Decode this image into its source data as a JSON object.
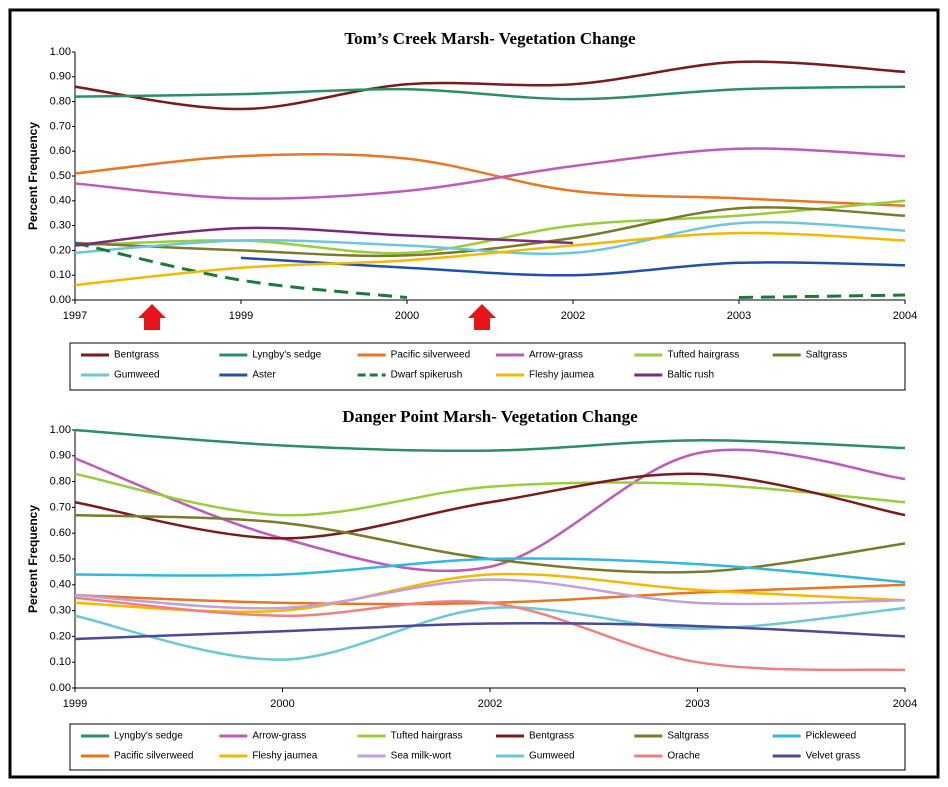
{
  "chart_data": [
    {
      "type": "line",
      "title": "Tom’s Creek Marsh- Vegetation Change",
      "y_label": "Percent Frequency",
      "categories": [
        "1997",
        "1999",
        "2000",
        "2002",
        "2003",
        "2004"
      ],
      "ylim": [
        0,
        1
      ],
      "yticks": [
        {
          "value": 0,
          "label": "0.00"
        },
        {
          "value": 0.1,
          "label": "0.10"
        },
        {
          "value": 0.2,
          "label": "0.20"
        },
        {
          "value": 0.3,
          "label": "0.30"
        },
        {
          "value": 0.4,
          "label": "0.40"
        },
        {
          "value": 0.5,
          "label": "0.50"
        },
        {
          "value": 0.6,
          "label": "0.60"
        },
        {
          "value": 0.7,
          "label": "0.70"
        },
        {
          "value": 0.8,
          "label": "0.80"
        },
        {
          "value": 0.9,
          "label": "0.90"
        },
        {
          "value": 1,
          "label": "1.00"
        }
      ],
      "series": [
        {
          "name": "Bentgrass",
          "color": "#7b1a1a",
          "values": [
            0.86,
            0.77,
            0.87,
            0.87,
            0.96,
            0.92
          ]
        },
        {
          "name": "Lyngby's sedge",
          "color": "#2a9060",
          "values": [
            0.82,
            0.83,
            0.85,
            0.81,
            0.85,
            0.86
          ]
        },
        {
          "name": "Pacific silverweed",
          "color": "#e87722",
          "values": [
            0.51,
            0.58,
            0.57,
            0.44,
            0.41,
            0.38
          ]
        },
        {
          "name": "Arrow-grass",
          "color": "#c05ab8",
          "values": [
            0.47,
            0.41,
            0.44,
            0.54,
            0.61,
            0.58
          ]
        },
        {
          "name": "Tufted hairgrass",
          "color": "#9acd3c",
          "values": [
            0.22,
            0.24,
            0.19,
            0.3,
            0.34,
            0.4
          ]
        },
        {
          "name": "Saltgrass",
          "color": "#7a7a2a",
          "values": [
            0.23,
            0.2,
            0.18,
            0.25,
            0.37,
            0.34
          ]
        },
        {
          "name": "Gumweed",
          "color": "#6cc8d8",
          "values": [
            0.19,
            0.24,
            0.22,
            0.19,
            0.31,
            0.28
          ]
        },
        {
          "name": "Aster",
          "color": "#2050a8",
          "values": [
            null,
            0.17,
            0.13,
            0.1,
            0.15,
            0.14
          ]
        },
        {
          "name": "Dwarf spikerush",
          "color": "#1a7a3a",
          "dashed": true,
          "values": [
            0.23,
            0.08,
            0.01,
            null,
            0.01,
            0.02
          ]
        },
        {
          "name": "Fleshy jaumea",
          "color": "#f5b800",
          "values": [
            0.06,
            0.13,
            0.16,
            0.22,
            0.27,
            0.24
          ]
        },
        {
          "name": "Baltic rush",
          "color": "#7a2a7a",
          "values": [
            0.22,
            0.29,
            0.26,
            0.23,
            null,
            null
          ]
        }
      ]
    },
    {
      "type": "line",
      "title": "Danger Point Marsh- Vegetation Change",
      "y_label": "Percent Frequency",
      "categories": [
        "1999",
        "2000",
        "2002",
        "2003",
        "2004"
      ],
      "ylim": [
        0,
        1
      ],
      "yticks": [
        {
          "value": 0,
          "label": "0.00"
        },
        {
          "value": 0.1,
          "label": "0.10"
        },
        {
          "value": 0.2,
          "label": "0.20"
        },
        {
          "value": 0.3,
          "label": "0.30"
        },
        {
          "value": 0.4,
          "label": "0.40"
        },
        {
          "value": 0.5,
          "label": "0.50"
        },
        {
          "value": 0.6,
          "label": "0.60"
        },
        {
          "value": 0.7,
          "label": "0.70"
        },
        {
          "value": 0.8,
          "label": "0.80"
        },
        {
          "value": 0.9,
          "label": "0.90"
        },
        {
          "value": 1,
          "label": "1.00"
        }
      ],
      "series": [
        {
          "name": "Lyngby's sedge",
          "color": "#2a9060",
          "values": [
            1.0,
            0.94,
            0.92,
            0.96,
            0.93
          ]
        },
        {
          "name": "Arrow-grass",
          "color": "#c05ab8",
          "values": [
            0.89,
            0.58,
            0.47,
            0.91,
            0.81
          ]
        },
        {
          "name": "Tufted hairgrass",
          "color": "#9acd3c",
          "values": [
            0.83,
            0.67,
            0.78,
            0.79,
            0.72
          ]
        },
        {
          "name": "Bentgrass",
          "color": "#7b1a1a",
          "values": [
            0.72,
            0.58,
            0.72,
            0.83,
            0.67
          ]
        },
        {
          "name": "Saltgrass",
          "color": "#7a7a2a",
          "values": [
            0.67,
            0.64,
            0.5,
            0.45,
            0.56
          ]
        },
        {
          "name": "Pickleweed",
          "color": "#30b8e0",
          "values": [
            0.44,
            0.44,
            0.5,
            0.48,
            0.41
          ]
        },
        {
          "name": "Pacific silverweed",
          "color": "#e87722",
          "values": [
            0.36,
            0.33,
            0.33,
            0.37,
            0.4
          ]
        },
        {
          "name": "Fleshy jaumea",
          "color": "#f5b800",
          "values": [
            0.33,
            0.3,
            0.44,
            0.38,
            0.34
          ]
        },
        {
          "name": "Sea milk-wort",
          "color": "#c0a0d8",
          "values": [
            0.36,
            0.31,
            0.42,
            0.33,
            0.34
          ]
        },
        {
          "name": "Gumweed",
          "color": "#6cc8d8",
          "values": [
            0.28,
            0.11,
            0.31,
            0.23,
            0.31
          ]
        },
        {
          "name": "Orache",
          "color": "#f08080",
          "values": [
            0.35,
            0.28,
            0.33,
            0.1,
            0.07
          ]
        },
        {
          "name": "Velvet grass",
          "color": "#4a4a9a",
          "values": [
            0.19,
            0.22,
            0.25,
            0.24,
            0.2
          ]
        }
      ]
    }
  ]
}
